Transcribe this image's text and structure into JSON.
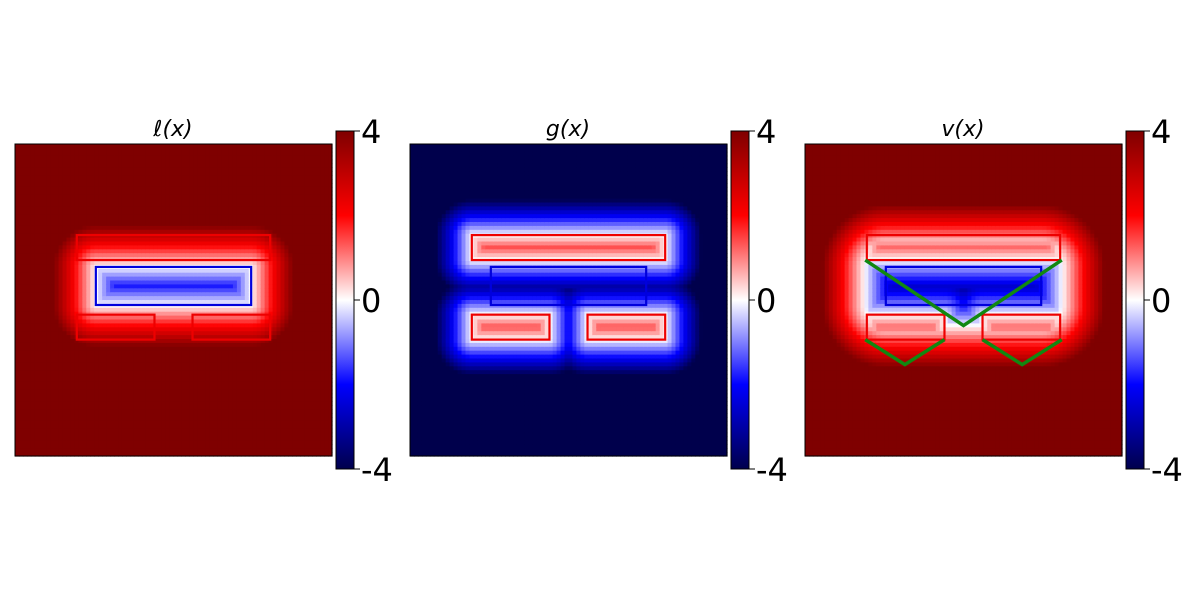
{
  "chart_data": {
    "type": "heatmap",
    "colormap": "seismic",
    "colorbar": {
      "min": -4,
      "max": 4,
      "ticks": [
        "4",
        "0",
        "-4"
      ]
    },
    "panels": [
      {
        "title": "ℓ(x)",
        "kind": "l"
      },
      {
        "title": "g(x)",
        "kind": "g"
      },
      {
        "title": "v(x)",
        "kind": "v"
      }
    ],
    "domain": {
      "x": [
        0,
        1
      ],
      "y": [
        0,
        1
      ]
    },
    "boxes": {
      "blue": [
        {
          "x0": 0.255,
          "x1": 0.745,
          "y0": 0.484,
          "y1": 0.606,
          "color": "#0000dd"
        }
      ],
      "red": [
        {
          "x0": 0.195,
          "x1": 0.805,
          "y0": 0.628,
          "y1": 0.708,
          "color": "#ee0000"
        },
        {
          "x0": 0.195,
          "x1": 0.44,
          "y0": 0.373,
          "y1": 0.453,
          "color": "#ee0000"
        },
        {
          "x0": 0.56,
          "x1": 0.805,
          "y0": 0.373,
          "y1": 0.453,
          "color": "#ee0000"
        }
      ]
    },
    "green_lines": {
      "color": "#118811",
      "paths": [
        [
          [
            0.19,
            0.628
          ],
          [
            0.5,
            0.418
          ],
          [
            0.81,
            0.628
          ]
        ],
        [
          [
            0.19,
            0.373
          ],
          [
            0.315,
            0.293
          ],
          [
            0.44,
            0.373
          ]
        ],
        [
          [
            0.56,
            0.373
          ],
          [
            0.685,
            0.293
          ],
          [
            0.81,
            0.373
          ]
        ]
      ]
    }
  }
}
